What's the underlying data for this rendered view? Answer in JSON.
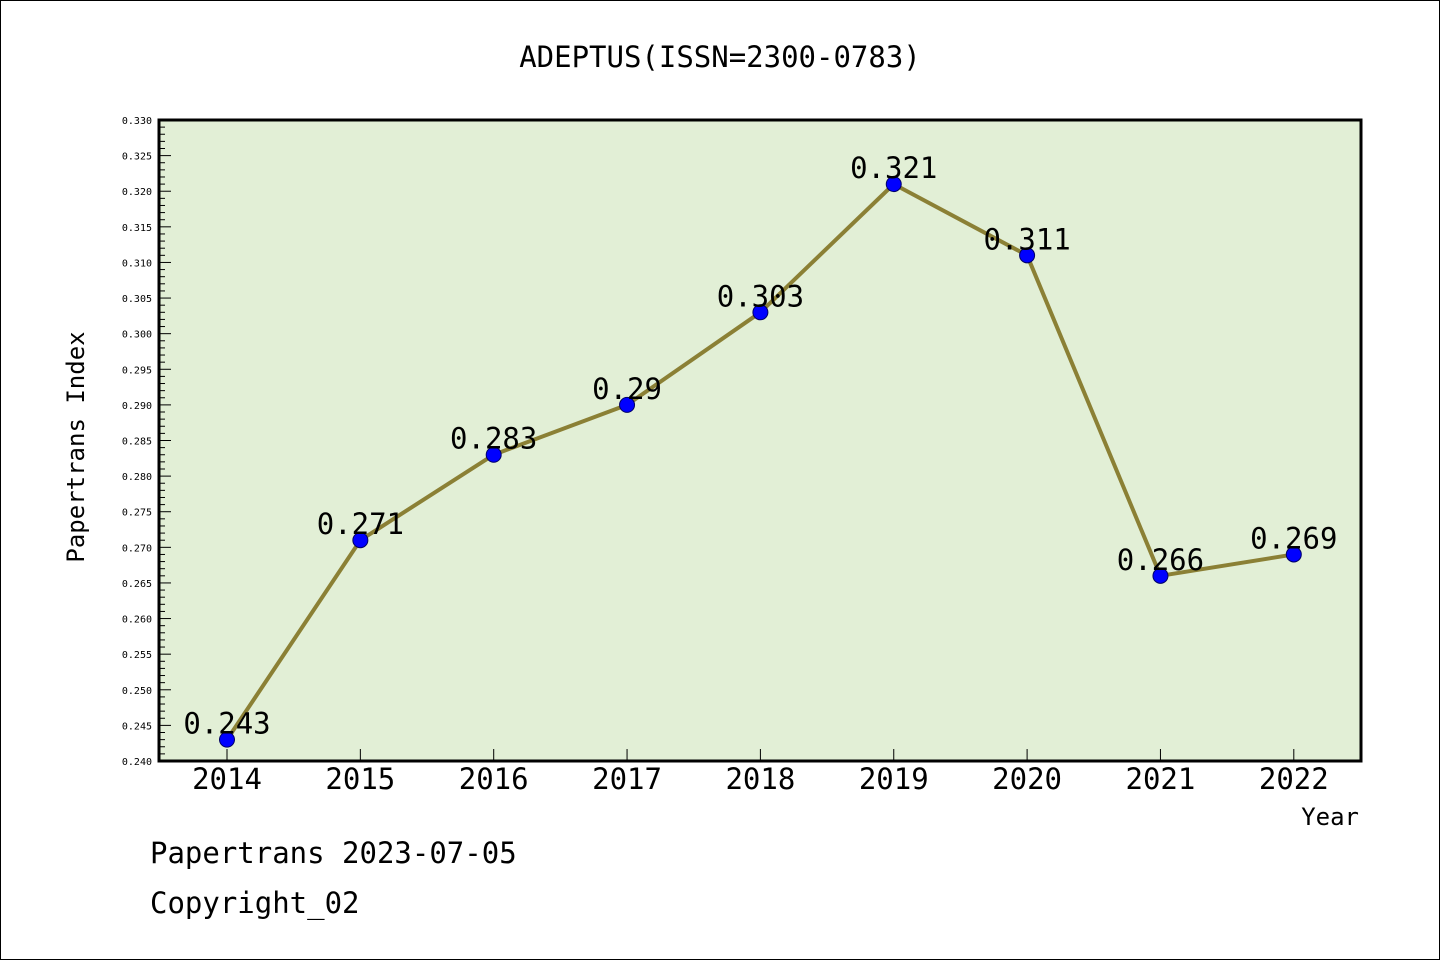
{
  "chart_data": {
    "type": "line",
    "title": "ADEPTUS(ISSN=2300-0783)",
    "xlabel": "Year",
    "ylabel": "Papertrans Index",
    "categories": [
      "2014",
      "2015",
      "2016",
      "2017",
      "2018",
      "2019",
      "2020",
      "2021",
      "2022"
    ],
    "values": [
      0.243,
      0.271,
      0.283,
      0.29,
      0.303,
      0.321,
      0.311,
      0.266,
      0.269
    ],
    "data_labels": [
      "0.243",
      "0.271",
      "0.283",
      "0.29",
      "0.303",
      "0.321",
      "0.311",
      "0.266",
      "0.269"
    ],
    "ylim": [
      0.24,
      0.33
    ],
    "y_ticks": [
      "0.240",
      "0.245",
      "0.250",
      "0.255",
      "0.260",
      "0.265",
      "0.270",
      "0.275",
      "0.280",
      "0.285",
      "0.290",
      "0.295",
      "0.300",
      "0.305",
      "0.310",
      "0.315",
      "0.320",
      "0.325",
      "0.330"
    ],
    "grid": false,
    "legend": "none",
    "colors": {
      "plot_background": "#e2efd6",
      "line": "#8b8035",
      "marker": "#0000ff",
      "marker_edge": "#000066"
    }
  },
  "footer": {
    "line1": "Papertrans 2023-07-05",
    "line2": "Copyright_02"
  }
}
